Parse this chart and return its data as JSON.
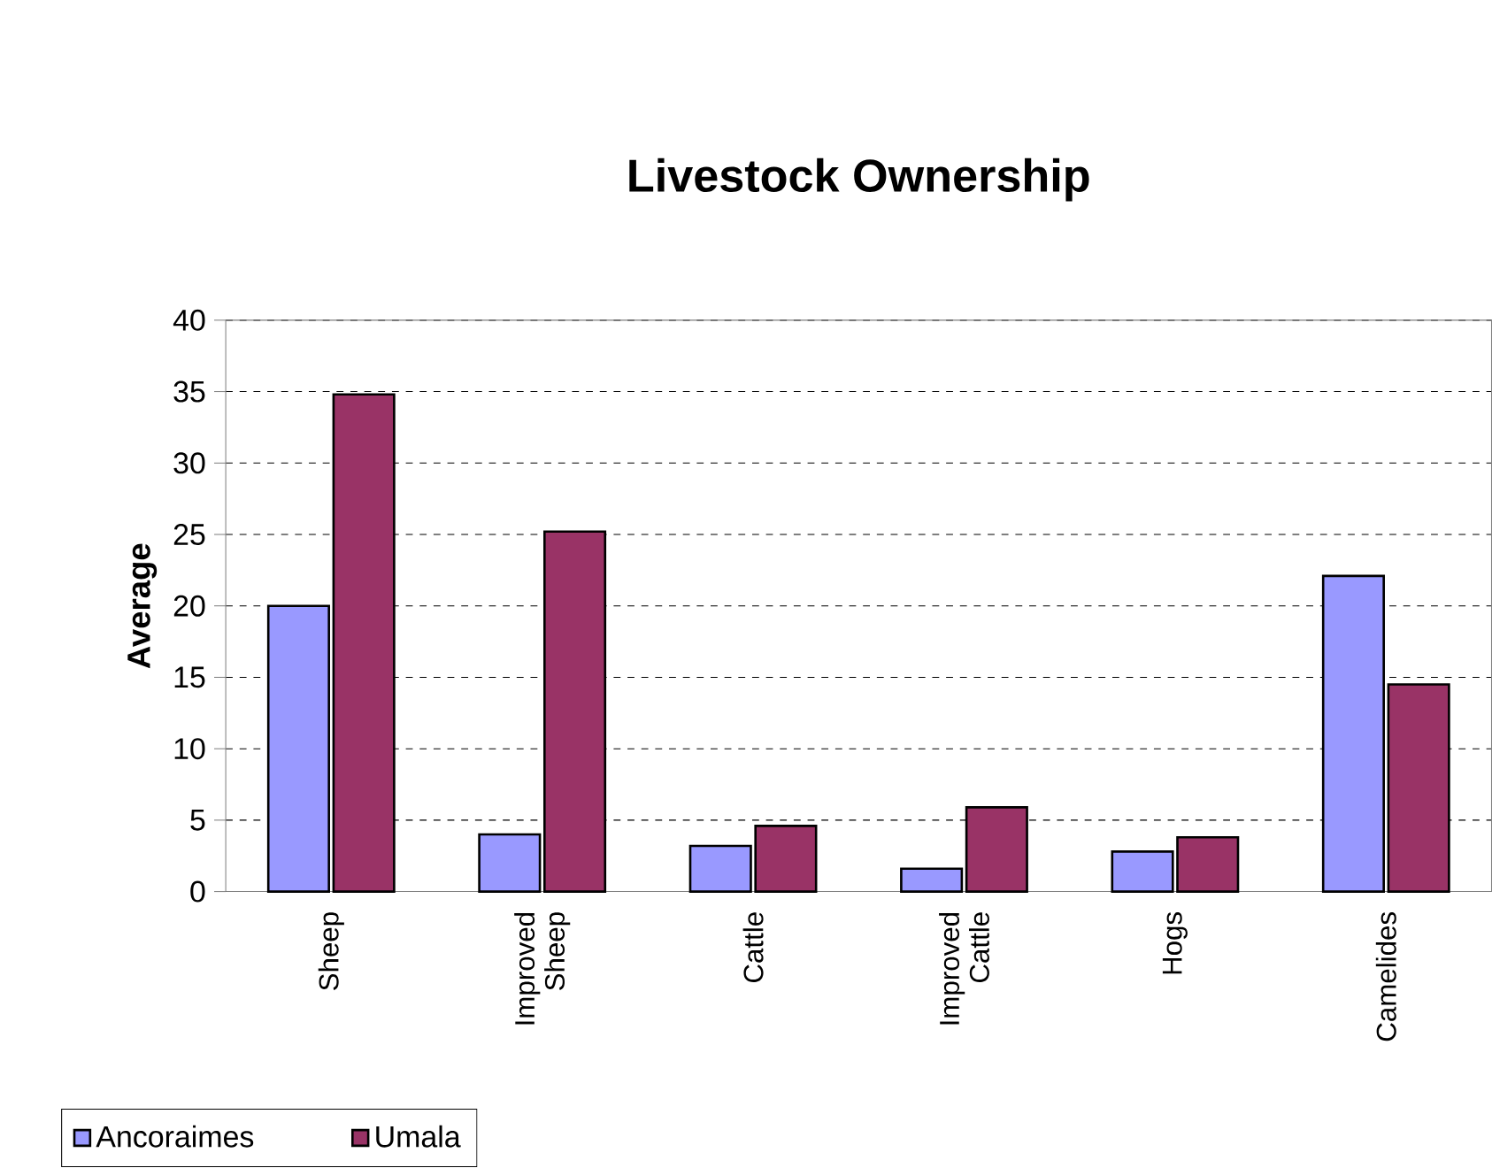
{
  "chart_data": {
    "type": "bar",
    "title": "Livestock Ownership",
    "ylabel": "Average",
    "categories": [
      "Sheep",
      "Improved Sheep",
      "Cattle",
      "Improved Cattle",
      "Hogs",
      "Camelides"
    ],
    "series": [
      {
        "name": "Ancoraimes",
        "color": "#9999ff",
        "values": [
          20,
          4.0,
          3.2,
          1.6,
          2.8,
          22.1
        ]
      },
      {
        "name": "Umala",
        "color": "#993366",
        "values": [
          34.8,
          25.2,
          4.6,
          5.9,
          3.8,
          14.5
        ]
      }
    ],
    "ylim": [
      0,
      40
    ],
    "yticks": [
      0,
      5,
      10,
      15,
      20,
      25,
      30,
      35,
      40
    ],
    "grid": "y",
    "legend": "bottom left"
  }
}
